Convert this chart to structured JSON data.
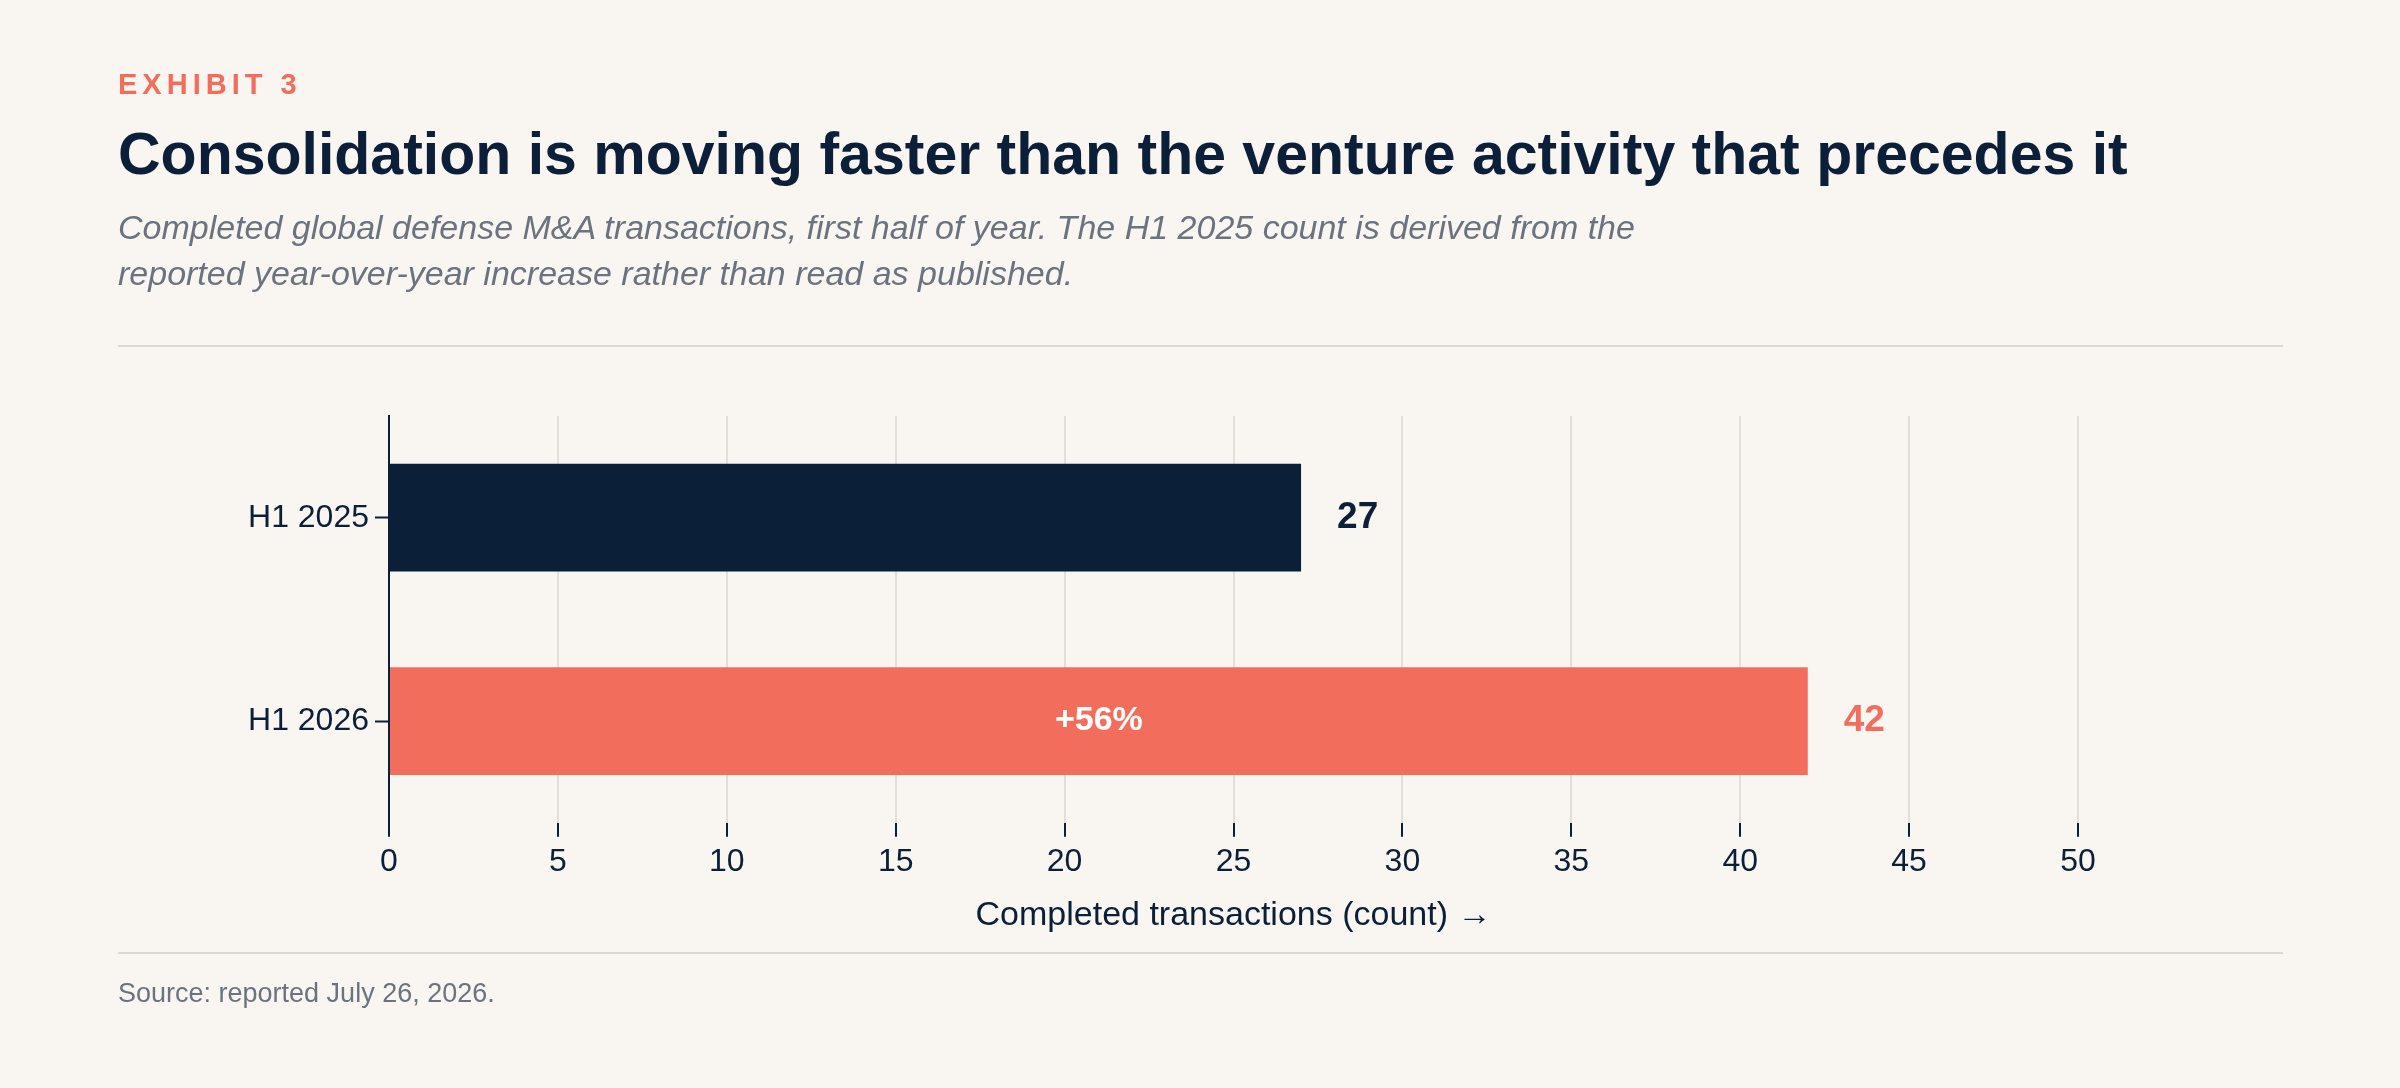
{
  "chart_data": {
    "type": "bar",
    "orientation": "horizontal",
    "title": "Consolidation is moving faster than the venture activity that precedes it",
    "subtitle": "Completed global defense M&A transactions, first half of year. The H1 2025 count is derived from the reported year-over-year increase rather than read as published.",
    "xlabel": "Completed transactions (count) →",
    "categories": [
      "H1 2025",
      "H1 2026"
    ],
    "values": [
      27,
      42
    ],
    "colors": [
      "#0b1f38",
      "#f26d5b"
    ],
    "xlim": [
      0,
      50
    ],
    "xticks": [
      0,
      5,
      10,
      15,
      20,
      25,
      30,
      35,
      40,
      45,
      50
    ],
    "grid": "x",
    "legend": false,
    "data_labels": true,
    "annotations": [
      "EXHIBIT 3",
      "+56%",
      "Source: reported July 26, 2026."
    ]
  }
}
